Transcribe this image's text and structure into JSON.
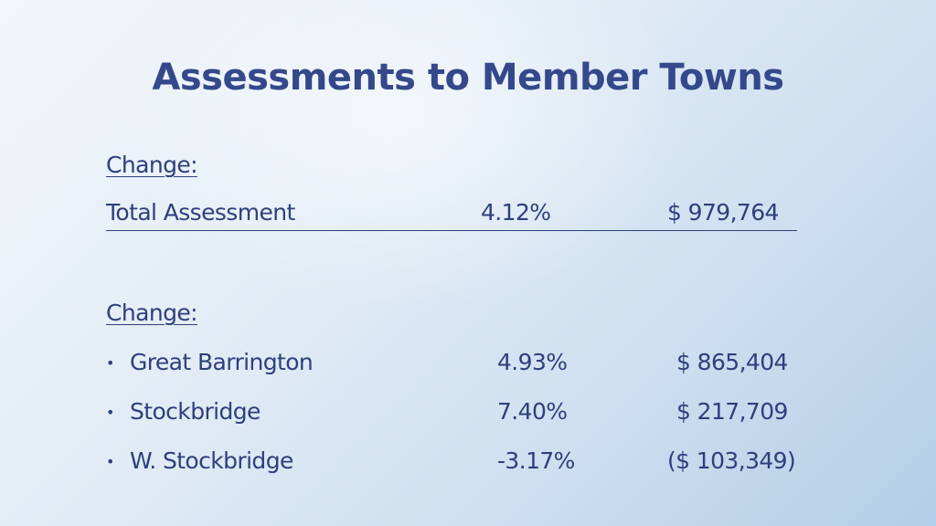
{
  "slide": {
    "title": "Assessments to Member Towns",
    "section1": {
      "label": "Change:",
      "total": {
        "name": "Total Assessment",
        "percent": "4.12%",
        "amount": "$  979,764"
      }
    },
    "section2": {
      "label": "Change:",
      "bullet_glyph": "•",
      "rows": [
        {
          "name": "Great Barrington",
          "percent": "4.93%",
          "amount": "$ 865,404"
        },
        {
          "name": "Stockbridge",
          "percent": "7.40%",
          "amount": "$  217,709"
        },
        {
          "name": "W. Stockbridge",
          "percent": "-3.17%",
          "amount": "($ 103,349)"
        }
      ]
    }
  }
}
